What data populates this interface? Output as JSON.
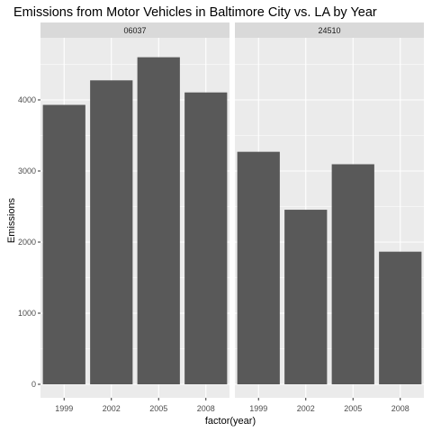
{
  "chart_data": {
    "type": "bar",
    "title": "Emissions from Motor Vehicles in Baltimore City vs. LA by Year",
    "xlabel": "factor(year)",
    "ylabel": "Emissions",
    "ylim": [
      0,
      4700
    ],
    "yticks": [
      0,
      1000,
      2000,
      3000,
      4000
    ],
    "grid": true,
    "categories": [
      "1999",
      "2002",
      "2005",
      "2008"
    ],
    "facets": [
      {
        "name": "06037",
        "values": [
          3930,
          4275,
          4600,
          4105
        ]
      },
      {
        "name": "24510",
        "values": [
          3270,
          2455,
          3095,
          1865
        ]
      }
    ],
    "colors": {
      "bar": "#595959",
      "panel": "#ebebeb",
      "strip": "#d9d9d9",
      "grid": "#ffffff",
      "text": "#4d4d4d",
      "title": "#000000"
    }
  }
}
